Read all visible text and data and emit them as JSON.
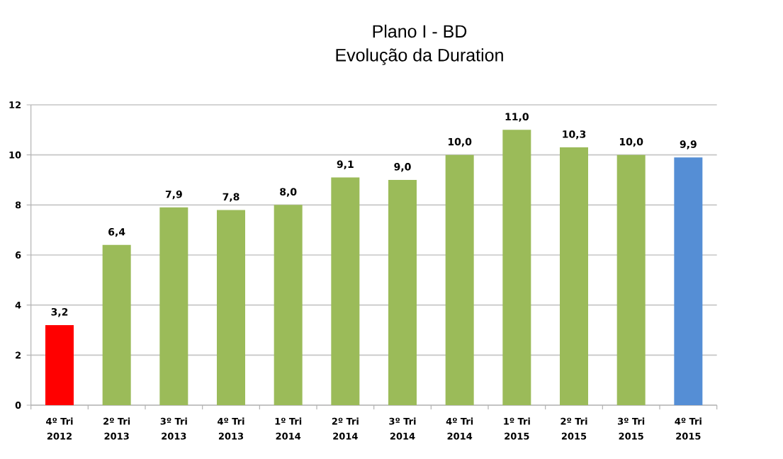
{
  "chart_data": {
    "type": "bar",
    "title": "Plano I - BD",
    "subtitle": "Evolução da Duration",
    "categories": [
      "4º Tri 2012",
      "2º Tri 2013",
      "3º Tri 2013",
      "4º Tri 2013",
      "1º Tri 2014",
      "2º Tri 2014",
      "3º Tri 2014",
      "4º Tri 2014",
      "1º Tri 2015",
      "2º Tri 2015",
      "3º Tri 2015",
      "4º Tri 2015"
    ],
    "values": [
      3.2,
      6.4,
      7.9,
      7.8,
      8.0,
      9.1,
      9.0,
      10.0,
      11.0,
      10.3,
      10.0,
      9.9
    ],
    "value_labels": [
      "3,2",
      "6,4",
      "7,9",
      "7,8",
      "8,0",
      "9,1",
      "9,0",
      "10,0",
      "11,0",
      "10,3",
      "10,0",
      "9,9"
    ],
    "colors": [
      "#ff0000",
      "#9bbb59",
      "#9bbb59",
      "#9bbb59",
      "#9bbb59",
      "#9bbb59",
      "#9bbb59",
      "#9bbb59",
      "#9bbb59",
      "#9bbb59",
      "#9bbb59",
      "#558ed5"
    ],
    "ylim": [
      0,
      12
    ],
    "yticks": [
      0,
      2,
      4,
      6,
      8,
      10,
      12
    ],
    "grid": "y"
  }
}
